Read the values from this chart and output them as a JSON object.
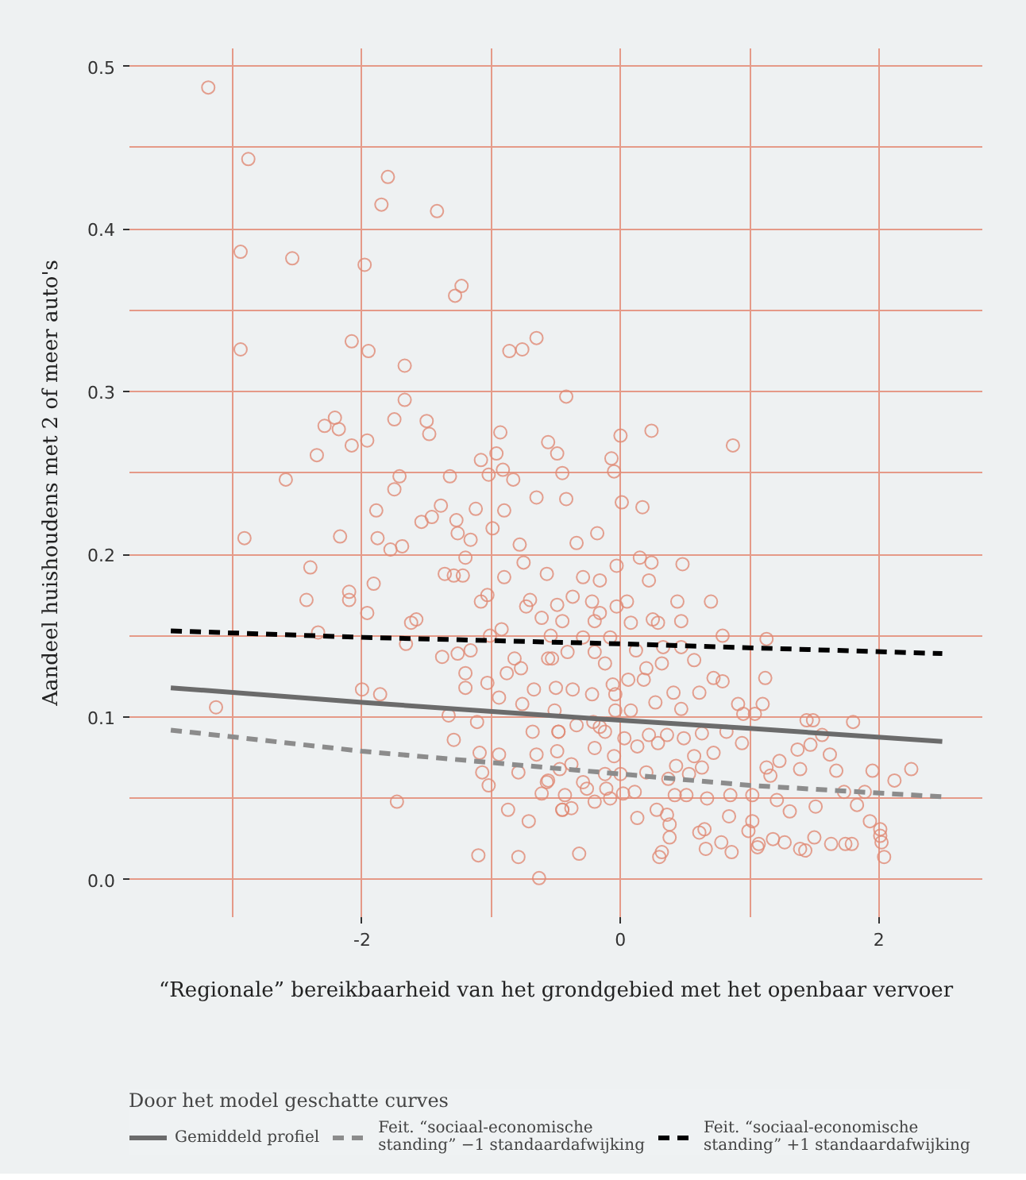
{
  "chart_data": {
    "type": "scatter",
    "xlabel": "“Regionale” bereikbaarheid van het grondgebied met het openbaar vervoer",
    "ylabel": "Aandeel huishoudens met 2 of meer auto's",
    "legend_title": "Door het model geschatte curves",
    "xlim": [
      -3.8,
      2.8
    ],
    "ylim": [
      -0.023,
      0.511
    ],
    "xticks": [
      {
        "value": -3,
        "label": null
      },
      -2,
      {
        "value": -1,
        "label": null
      },
      0,
      {
        "value": 1,
        "label": null
      },
      2
    ],
    "yticks": [
      {
        "value": 0,
        "label": "0.0"
      },
      {
        "value": 0.05,
        "label": null
      },
      0.1,
      {
        "value": 0.15,
        "label": null
      },
      0.2,
      {
        "value": 0.25,
        "label": null
      },
      0.3,
      {
        "value": 0.35,
        "label": null
      },
      0.4,
      {
        "value": 0.45,
        "label": null
      },
      0.5
    ],
    "grid": true,
    "legend": "bottom",
    "series": [
      {
        "marker": "circle",
        "color": "#e08a74",
        "x": [
          -3.19,
          -2.88,
          -2.94,
          -2.94,
          -2.91,
          -2.54,
          -1.8,
          -1.85,
          -1.42,
          -1.98,
          -1.23,
          -1.28,
          -2.08,
          -1.95,
          -1.67,
          -0.86,
          -0.76,
          -0.65,
          -0.42,
          -1.67,
          -2.21,
          -2.29,
          -2.18,
          -1.75,
          -1.5,
          -1.48,
          -2.08,
          -1.96,
          -2.35,
          -2.59,
          -0.93,
          -0.96,
          -1.08,
          -0.91,
          -1.02,
          -0.83,
          -1.71,
          -1.32,
          -1.75,
          -0.56,
          -0.49,
          -0.45,
          0.0,
          0.24,
          -0.07,
          -0.05,
          0.87,
          -2.17,
          -2.4,
          -2.43,
          -2.1,
          -2.1,
          -1.91,
          -1.96,
          -1.89,
          -1.88,
          -1.78,
          -1.69,
          -1.62,
          -1.58,
          -1.66,
          -2.34,
          -3.13,
          -2.0,
          -1.86,
          -1.73,
          -1.54,
          -1.46,
          -1.39,
          -1.27,
          -1.26,
          -1.16,
          -1.2,
          -1.36,
          -1.29,
          -1.22,
          -1.12,
          -0.99,
          -0.9,
          -0.65,
          -0.78,
          -0.75,
          -0.9,
          -1.08,
          -1.03,
          -0.73,
          -0.7,
          -0.61,
          -0.49,
          -1.38,
          -1.26,
          -1.16,
          -1.2,
          -1.2,
          -1.33,
          -1.11,
          -1.29,
          -1.09,
          -1.07,
          -1.02,
          -0.94,
          -0.79,
          -0.87,
          -0.71,
          -1.1,
          -0.79,
          -0.63,
          -1.01,
          -0.92,
          -1.03,
          -0.94,
          -0.82,
          -0.77,
          -0.88,
          -0.67,
          -0.76,
          -0.68,
          -0.65,
          -0.57,
          -0.61,
          -0.45,
          -0.56,
          -0.54,
          -0.51,
          -0.48,
          -0.47,
          0.01,
          0.17,
          -0.42,
          -0.34,
          -0.18,
          0.15,
          0.24,
          0.48,
          -0.03,
          0.22,
          -0.29,
          0.44,
          0.7,
          0.05,
          -0.03,
          0.25,
          0.29,
          0.47,
          0.79,
          1.13,
          0.57,
          0.32,
          1.12,
          0.72,
          0.79,
          1.1,
          0.91,
          1.04,
          0.95,
          1.44,
          1.49,
          1.8,
          1.56,
          1.37,
          1.47,
          1.62,
          1.67,
          1.23,
          1.13,
          1.16,
          1.39,
          1.95,
          2.25,
          2.12,
          1.89,
          1.73,
          1.83,
          1.93,
          2.01,
          2.01,
          2.02,
          2.04,
          1.79,
          1.74,
          1.63,
          1.5,
          1.39,
          1.43,
          1.27,
          1.18,
          1.06,
          1.07,
          0.99,
          0.86,
          0.78,
          0.66,
          0.61,
          0.38,
          0.3,
          0.32,
          0.38,
          0.36,
          0.13,
          0.28,
          -0.32,
          -0.45,
          -0.38,
          -0.2,
          -0.08,
          0.02,
          0.11,
          -0.56,
          -0.43,
          -0.26,
          -0.11,
          -0.05,
          -0.2,
          -0.38,
          -0.49,
          -0.48,
          -0.34,
          -0.21,
          -0.12,
          0.03,
          0.13,
          0.22,
          0.36,
          0.49,
          0.63,
          0.82,
          0.94,
          0.72,
          0.57,
          0.43,
          0.53,
          0.63,
          0.42,
          0.51,
          0.67,
          0.85,
          1.02,
          1.21,
          1.31,
          1.51,
          0.84,
          0.65,
          1.02,
          0.29,
          0.08,
          -0.04,
          -0.16,
          -0.37,
          -0.5,
          -0.22,
          -0.06,
          0.06,
          0.18,
          0.41,
          0.61,
          0.27,
          0.47,
          -0.2,
          -0.41,
          -0.53,
          -0.12,
          0.2,
          -0.29,
          -0.08,
          -0.2,
          -0.45,
          -0.37,
          -0.22,
          -0.16,
          -0.57,
          -0.16,
          0.47,
          0.33,
          0.12,
          0.08,
          -0.04,
          -0.12,
          0.0,
          0.2,
          0.37,
          -0.29
        ],
        "values": [
          0.487,
          0.443,
          0.386,
          0.326,
          0.21,
          0.382,
          0.432,
          0.415,
          0.411,
          0.378,
          0.365,
          0.359,
          0.331,
          0.325,
          0.316,
          0.325,
          0.326,
          0.333,
          0.297,
          0.295,
          0.284,
          0.279,
          0.277,
          0.283,
          0.282,
          0.274,
          0.267,
          0.27,
          0.261,
          0.246,
          0.275,
          0.262,
          0.258,
          0.252,
          0.249,
          0.246,
          0.248,
          0.248,
          0.24,
          0.269,
          0.262,
          0.25,
          0.273,
          0.276,
          0.259,
          0.251,
          0.267,
          0.211,
          0.192,
          0.172,
          0.177,
          0.172,
          0.182,
          0.164,
          0.227,
          0.21,
          0.203,
          0.205,
          0.158,
          0.16,
          0.145,
          0.152,
          0.106,
          0.117,
          0.114,
          0.048,
          0.22,
          0.223,
          0.23,
          0.221,
          0.213,
          0.209,
          0.198,
          0.188,
          0.187,
          0.187,
          0.228,
          0.216,
          0.227,
          0.235,
          0.206,
          0.195,
          0.186,
          0.171,
          0.175,
          0.168,
          0.172,
          0.161,
          0.169,
          0.137,
          0.139,
          0.141,
          0.127,
          0.118,
          0.101,
          0.097,
          0.086,
          0.078,
          0.066,
          0.058,
          0.077,
          0.066,
          0.043,
          0.036,
          0.015,
          0.014,
          0.001,
          0.15,
          0.154,
          0.121,
          0.112,
          0.136,
          0.13,
          0.127,
          0.117,
          0.108,
          0.091,
          0.077,
          0.06,
          0.053,
          0.043,
          0.136,
          0.15,
          0.104,
          0.091,
          0.068,
          0.232,
          0.229,
          0.234,
          0.207,
          0.213,
          0.198,
          0.195,
          0.194,
          0.193,
          0.184,
          0.186,
          0.171,
          0.171,
          0.171,
          0.168,
          0.16,
          0.158,
          0.159,
          0.15,
          0.148,
          0.135,
          0.133,
          0.124,
          0.124,
          0.122,
          0.108,
          0.108,
          0.102,
          0.102,
          0.098,
          0.098,
          0.097,
          0.089,
          0.08,
          0.083,
          0.077,
          0.067,
          0.073,
          0.069,
          0.064,
          0.068,
          0.067,
          0.068,
          0.061,
          0.054,
          0.054,
          0.046,
          0.036,
          0.031,
          0.027,
          0.023,
          0.014,
          0.022,
          0.022,
          0.022,
          0.026,
          0.019,
          0.018,
          0.023,
          0.025,
          0.02,
          0.022,
          0.03,
          0.017,
          0.023,
          0.019,
          0.029,
          0.026,
          0.014,
          0.017,
          0.034,
          0.04,
          0.038,
          0.043,
          0.016,
          0.043,
          0.044,
          0.048,
          0.05,
          0.053,
          0.054,
          0.061,
          0.052,
          0.056,
          0.056,
          0.076,
          0.081,
          0.071,
          0.079,
          0.091,
          0.095,
          0.097,
          0.091,
          0.087,
          0.082,
          0.089,
          0.089,
          0.087,
          0.09,
          0.091,
          0.084,
          0.078,
          0.076,
          0.07,
          0.065,
          0.069,
          0.052,
          0.052,
          0.05,
          0.052,
          0.052,
          0.049,
          0.042,
          0.045,
          0.039,
          0.031,
          0.036,
          0.084,
          0.104,
          0.104,
          0.094,
          0.117,
          0.118,
          0.114,
          0.12,
          0.123,
          0.123,
          0.115,
          0.115,
          0.109,
          0.105,
          0.14,
          0.14,
          0.136,
          0.133,
          0.13,
          0.149,
          0.149,
          0.159,
          0.159,
          0.174,
          0.171,
          0.164,
          0.188,
          0.184,
          0.143,
          0.143,
          0.141,
          0.158,
          0.114,
          0.065,
          0.065,
          0.066,
          0.062,
          0.06
        ]
      },
      {
        "type": "line",
        "name": "Gemiddeld profiel",
        "color": "#6b6b6b",
        "line_style": "solid",
        "x": [
          -3.48,
          -2,
          0,
          1,
          2.49
        ],
        "values": [
          0.118,
          0.109,
          0.098,
          0.093,
          0.085
        ]
      },
      {
        "type": "line",
        "name": "Feit. “sociaal-economische standing” −1 standaardafwijking",
        "color": "#8c8c8c",
        "line_style": "dashed",
        "x": [
          -3.48,
          -2,
          0,
          1,
          2.49
        ],
        "values": [
          0.092,
          0.079,
          0.065,
          0.058,
          0.051
        ]
      },
      {
        "type": "line",
        "name": "Feit. “sociaal-economische standing” +1 standaardafwijking",
        "color": "#000000",
        "line_style": "dashed",
        "x": [
          -3.48,
          -2,
          0,
          2.49
        ],
        "values": [
          0.153,
          0.149,
          0.145,
          0.139
        ]
      }
    ]
  }
}
